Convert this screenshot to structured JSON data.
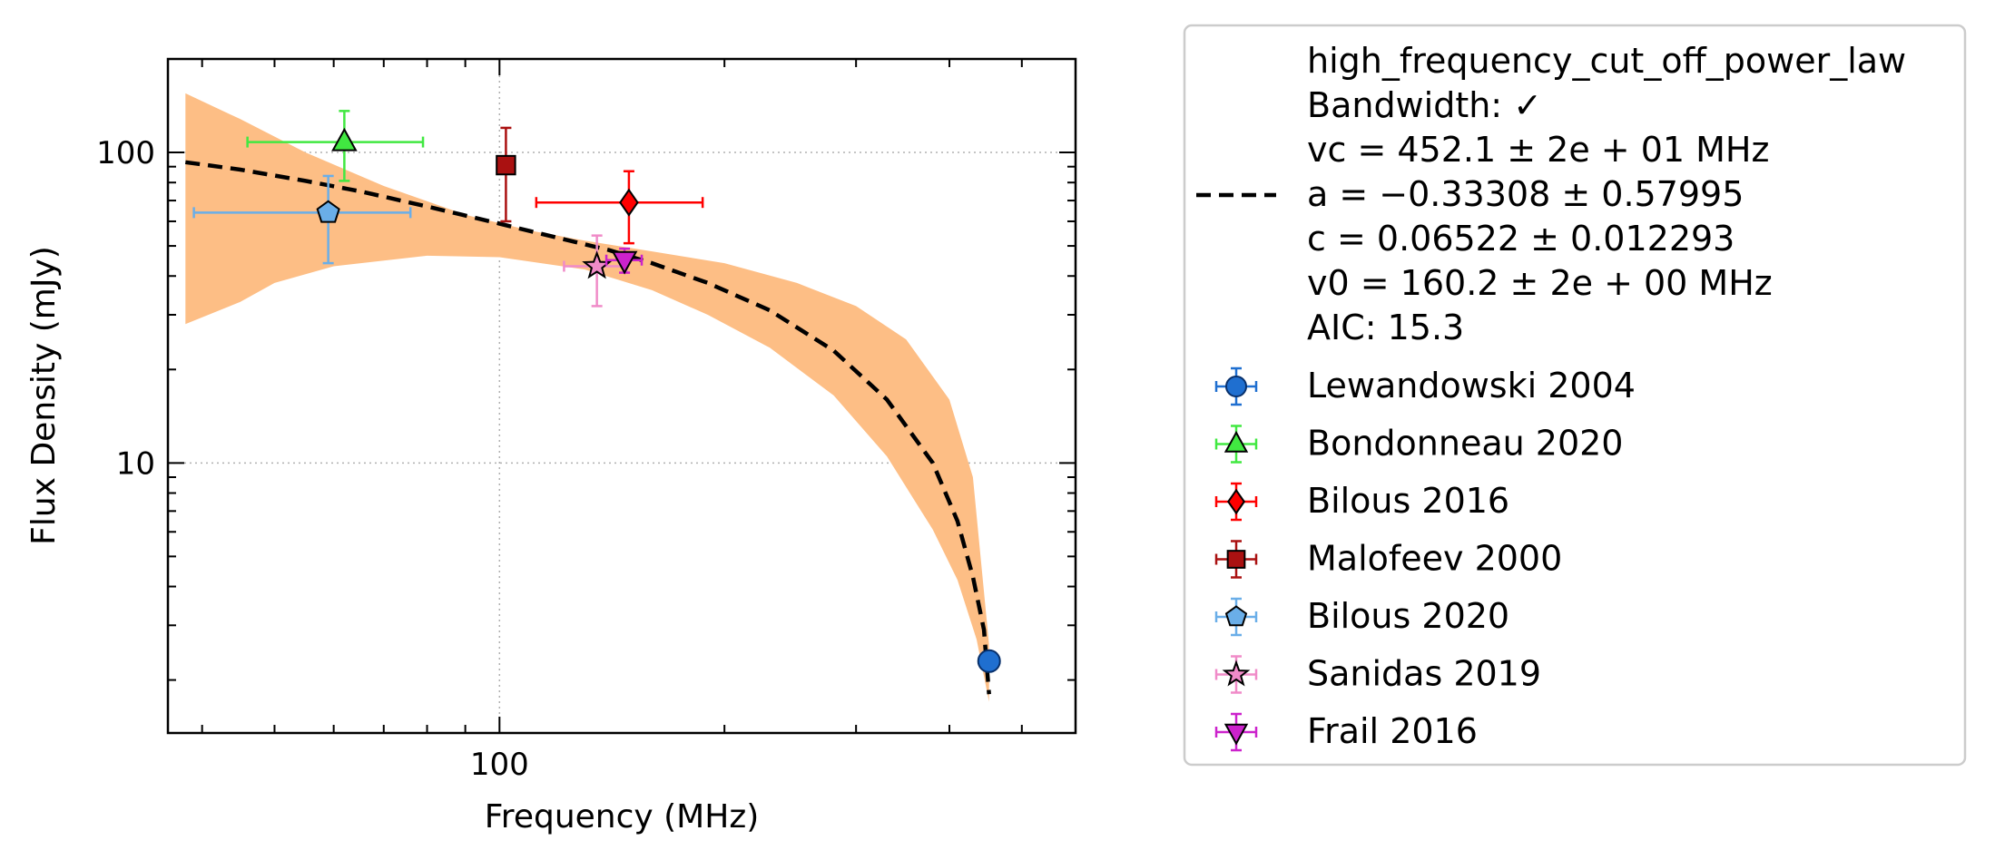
{
  "chart_data": {
    "type": "scatter",
    "xlabel": "Frequency (MHz)",
    "ylabel": "Flux Density (mJy)",
    "x_scale": "log",
    "y_scale": "log",
    "xlim": [
      36,
      590
    ],
    "ylim": [
      1.35,
      200
    ],
    "x_ticks": [
      {
        "value": 100,
        "label": "100"
      }
    ],
    "y_ticks": [
      {
        "value": 10,
        "label": "10"
      },
      {
        "value": 100,
        "label": "100"
      }
    ],
    "grid": true,
    "legend_placement": "outside-right",
    "fit": {
      "model": "high_frequency_cut_off_power_law",
      "line_color": "#000000",
      "band_color": "#fdbe85",
      "legend_lines": [
        "high_frequency_cut_off_power_law",
        "Bandwidth: ✓",
        "vc = 452.1 ± 2e + 01 MHz",
        "a = −0.33308 ± 0.57995",
        "c = 0.06522 ± 0.012293",
        "v0 = 160.2 ± 2e + 00 MHz",
        "AIC: 15.3"
      ],
      "curve": [
        [
          38,
          93
        ],
        [
          45,
          88
        ],
        [
          55,
          81
        ],
        [
          65,
          75
        ],
        [
          80,
          67
        ],
        [
          100,
          59
        ],
        [
          120,
          53
        ],
        [
          140,
          48.5
        ],
        [
          160,
          44
        ],
        [
          190,
          38
        ],
        [
          230,
          31
        ],
        [
          280,
          23
        ],
        [
          330,
          16
        ],
        [
          380,
          10
        ],
        [
          410,
          6.5
        ],
        [
          430,
          4.3
        ],
        [
          445,
          2.9
        ],
        [
          452,
          1.8
        ]
      ],
      "band_upper": [
        [
          38,
          155
        ],
        [
          45,
          128
        ],
        [
          55,
          100
        ],
        [
          70,
          78
        ],
        [
          90,
          63
        ],
        [
          110,
          56
        ],
        [
          130,
          52
        ],
        [
          160,
          48
        ],
        [
          200,
          44
        ],
        [
          250,
          38
        ],
        [
          300,
          32
        ],
        [
          350,
          25
        ],
        [
          400,
          16
        ],
        [
          430,
          9
        ],
        [
          452,
          2.6
        ]
      ],
      "band_lower": [
        [
          452,
          1.7
        ],
        [
          435,
          2.7
        ],
        [
          410,
          4.2
        ],
        [
          380,
          6.1
        ],
        [
          330,
          10.5
        ],
        [
          280,
          16.5
        ],
        [
          230,
          23.5
        ],
        [
          190,
          30
        ],
        [
          160,
          36
        ],
        [
          130,
          42
        ],
        [
          100,
          46
        ],
        [
          80,
          46.5
        ],
        [
          60,
          43
        ],
        [
          50,
          38
        ],
        [
          45,
          33
        ],
        [
          38,
          28
        ]
      ]
    },
    "series": [
      {
        "name": "Lewandowski 2004",
        "marker": "circle",
        "color": "#1f6fd0",
        "edge": "#08306b",
        "points": [
          {
            "x": 452,
            "y": 2.3,
            "xerr": [
              0,
              0
            ],
            "yerr": [
              0,
              0
            ]
          }
        ]
      },
      {
        "name": "Bondonneau 2020",
        "marker": "triangle-up",
        "color": "#41e841",
        "edge": "#000000",
        "points": [
          {
            "x": 62,
            "y": 108,
            "xerr": [
              16,
              17
            ],
            "yerr": [
              27,
              28
            ]
          }
        ]
      },
      {
        "name": "Bilous 2016",
        "marker": "diamond",
        "color": "#ff0000",
        "edge": "#000000",
        "points": [
          {
            "x": 149,
            "y": 69,
            "xerr": [
              37,
              38
            ],
            "yerr": [
              18,
              18
            ]
          }
        ]
      },
      {
        "name": "Malofeev 2000",
        "marker": "square",
        "color": "#aa1111",
        "edge": "#000000",
        "points": [
          {
            "x": 102,
            "y": 91,
            "xerr": [
              0,
              0
            ],
            "yerr": [
              31,
              29
            ]
          }
        ]
      },
      {
        "name": "Bilous 2020",
        "marker": "pentagon",
        "color": "#6aaee8",
        "edge": "#000000",
        "points": [
          {
            "x": 59,
            "y": 64,
            "xerr": [
              20,
              17
            ],
            "yerr": [
              20,
              20
            ]
          }
        ]
      },
      {
        "name": "Sanidas 2019",
        "marker": "star",
        "color": "#f08bc8",
        "edge": "#000000",
        "points": [
          {
            "x": 135,
            "y": 43,
            "xerr": [
              13,
              13
            ],
            "yerr": [
              11,
              11
            ]
          }
        ]
      },
      {
        "name": "Frail 2016",
        "marker": "triangle-down",
        "color": "#cc22cc",
        "edge": "#000000",
        "points": [
          {
            "x": 147,
            "y": 45,
            "xerr": [
              8,
              8
            ],
            "yerr": [
              4,
              4
            ]
          }
        ]
      }
    ]
  }
}
